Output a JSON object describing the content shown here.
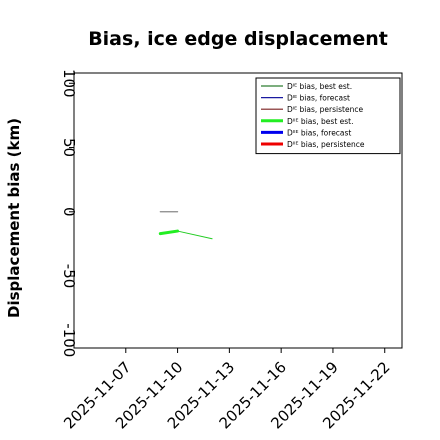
{
  "chart_data": {
    "type": "line",
    "title": "Bias, ice edge displacement",
    "ylabel": "Displacement bias (km)",
    "xlabel": "",
    "ylim": [
      -106,
      108
    ],
    "xlim": [
      "2025-11-04",
      "2025-11-23"
    ],
    "grid": false,
    "legend_position": "top-right",
    "x_ticks": [
      "2025-11-07",
      "2025-11-10",
      "2025-11-13",
      "2025-11-16",
      "2025-11-19",
      "2025-11-22"
    ],
    "x_tick_colors": [
      "#000000",
      "#000000",
      "#2e8b2e",
      "#000000",
      "#000000",
      "#000000"
    ],
    "y_ticks": [
      -100,
      -50,
      0,
      50,
      100
    ],
    "series": [
      {
        "name": "Dᴵᴱ bias, best est.",
        "color": "#2e7d32",
        "width": 1.2,
        "x": [],
        "y": []
      },
      {
        "name": "Dᴵᴱ bias, forecast",
        "color": "#1a1aa0",
        "width": 1.2,
        "x": [],
        "y": []
      },
      {
        "name": "Dᴵᴱ bias, persistence",
        "color": "#7a1f1f",
        "width": 1.2,
        "x": [],
        "y": []
      },
      {
        "name": "Dᴵᴵᴱ bias, best est.",
        "color": "#22ee22",
        "width": 3,
        "x": [
          "2025-11-09",
          "2025-11-10"
        ],
        "y": [
          -17,
          -15
        ]
      },
      {
        "name": "Dᴵᴵᴱ bias, forecast",
        "color": "#0000ee",
        "width": 3,
        "x": [],
        "y": []
      },
      {
        "name": "Dᴵᴵᴱ bias, persistence",
        "color": "#ee0000",
        "width": 3,
        "x": [],
        "y": []
      }
    ],
    "extra_segments": [
      {
        "color": "#888888",
        "width": 1.2,
        "x": [
          "2025-11-09",
          "2025-11-10"
        ],
        "y": [
          0,
          0
        ]
      },
      {
        "color": "#22cc22",
        "width": 1,
        "x": [
          "2025-11-10",
          "2025-11-12"
        ],
        "y": [
          -15,
          -21
        ]
      }
    ]
  }
}
